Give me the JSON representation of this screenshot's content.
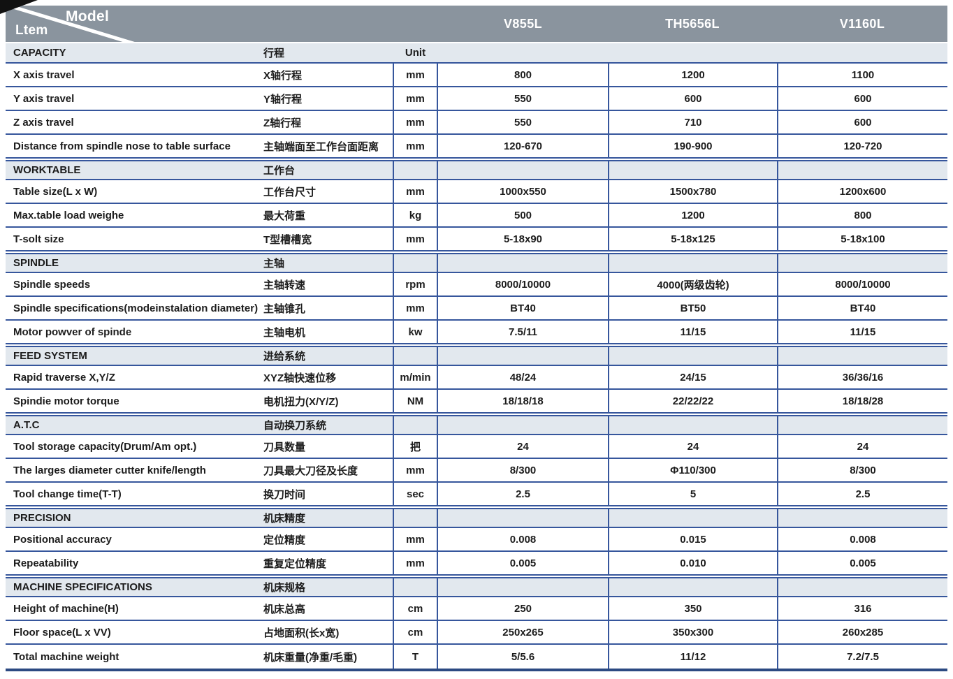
{
  "header": {
    "corner_top_label": "Model",
    "corner_bottom_label": "Ltem",
    "models": [
      "V855L",
      "TH5656L",
      "V1160L"
    ]
  },
  "colors": {
    "header_background": "#8a949e",
    "section_band_background": "#e2e8ee",
    "grid_line_blue": "#36569c",
    "bottom_rule_blue": "#2c4a82"
  },
  "sections": [
    {
      "title_en": "CAPACITY",
      "title_cn": "行程",
      "unit_header": "Unit",
      "rows": [
        {
          "en": "X axis travel",
          "cn": "X轴行程",
          "unit": "mm",
          "values": [
            "800",
            "1200",
            "1100"
          ]
        },
        {
          "en": "Y axis travel",
          "cn": "Y轴行程",
          "unit": "mm",
          "values": [
            "550",
            "600",
            "600"
          ]
        },
        {
          "en": "Z axis travel",
          "cn": "Z轴行程",
          "unit": "mm",
          "values": [
            "550",
            "710",
            "600"
          ]
        },
        {
          "en": "Distance from spindle nose to table surface",
          "cn": "主轴端面至工作台面距离",
          "unit": "mm",
          "values": [
            "120-670",
            "190-900",
            "120-720"
          ]
        }
      ]
    },
    {
      "title_en": "WORKTABLE",
      "title_cn": "工作台",
      "rows": [
        {
          "en": "Table size(L x W)",
          "cn": "工作台尺寸",
          "unit": "mm",
          "values": [
            "1000x550",
            "1500x780",
            "1200x600"
          ]
        },
        {
          "en": "Max.table load weighe",
          "cn": "最大荷重",
          "unit": "kg",
          "values": [
            "500",
            "1200",
            "800"
          ]
        },
        {
          "en": "T-solt size",
          "cn": "T型槽槽宽",
          "unit": "mm",
          "values": [
            "5-18x90",
            "5-18x125",
            "5-18x100"
          ]
        }
      ]
    },
    {
      "title_en": "SPINDLE",
      "title_cn": "主轴",
      "rows": [
        {
          "en": "Spindle speeds",
          "cn": "主轴转速",
          "unit": "rpm",
          "values": [
            "8000/10000",
            "4000(两级齿轮)",
            "8000/10000"
          ]
        },
        {
          "en": "Spindle specifications(modeinstalation diameter)",
          "cn": "主轴锥孔",
          "unit": "mm",
          "values": [
            "BT40",
            "BT50",
            "BT40"
          ]
        },
        {
          "en": "Motor powver of spinde",
          "cn": "主轴电机",
          "unit": "kw",
          "values": [
            "7.5/11",
            "11/15",
            "11/15"
          ]
        }
      ]
    },
    {
      "title_en": "FEED SYSTEM",
      "title_cn": "进给系统",
      "rows": [
        {
          "en": "Rapid traverse X,Y/Z",
          "cn": "XYZ轴快速位移",
          "unit": "m/min",
          "values": [
            "48/24",
            "24/15",
            "36/36/16"
          ]
        },
        {
          "en": "Spindie motor torque",
          "cn": "电机扭力(X/Y/Z)",
          "unit": "NM",
          "values": [
            "18/18/18",
            "22/22/22",
            "18/18/28"
          ]
        }
      ]
    },
    {
      "title_en": "A.T.C",
      "title_cn": "自动换刀系统",
      "rows": [
        {
          "en": "Tool storage capacity(Drum/Am opt.)",
          "cn": "刀具数量",
          "unit": "把",
          "values": [
            "24",
            "24",
            "24"
          ]
        },
        {
          "en": "The larges diameter cutter knife/length",
          "cn": "刀具最大刀径及长度",
          "unit": "mm",
          "values": [
            "8/300",
            "Φ110/300",
            "8/300"
          ]
        },
        {
          "en": "Tool change time(T-T)",
          "cn": "换刀时间",
          "unit": "sec",
          "values": [
            "2.5",
            "5",
            "2.5"
          ]
        }
      ]
    },
    {
      "title_en": "PRECISION",
      "title_cn": "机床精度",
      "rows": [
        {
          "en": "Positional accuracy",
          "cn": "定位精度",
          "unit": "mm",
          "values": [
            "0.008",
            "0.015",
            "0.008"
          ]
        },
        {
          "en": "Repeatability",
          "cn": "重复定位精度",
          "unit": "mm",
          "values": [
            "0.005",
            "0.010",
            "0.005"
          ]
        }
      ]
    },
    {
      "title_en": "MACHINE SPECIFICATIONS",
      "title_cn": "机床规格",
      "rows": [
        {
          "en": "Height of machine(H)",
          "cn": "机床总高",
          "unit": "cm",
          "values": [
            "250",
            "350",
            "316"
          ]
        },
        {
          "en": "Floor space(L x VV)",
          "cn": "占地面积(长x宽)",
          "unit": "cm",
          "values": [
            "250x265",
            "350x300",
            "260x285"
          ]
        },
        {
          "en": "Total machine weight",
          "cn": "机床重量(净重/毛重)",
          "unit": "T",
          "values": [
            "5/5.6",
            "11/12",
            "7.2/7.5"
          ]
        }
      ]
    }
  ]
}
